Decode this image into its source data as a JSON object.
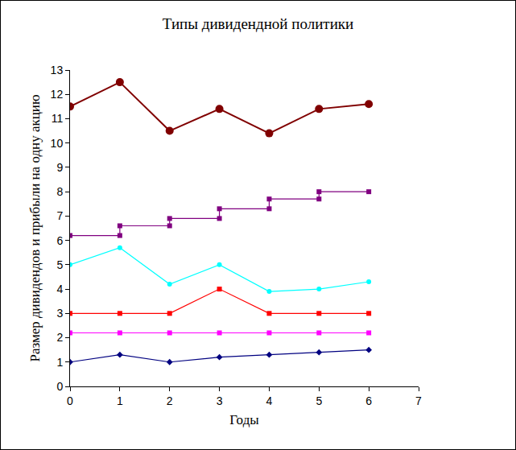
{
  "chart_data": {
    "type": "line",
    "title": "Типы дивидендной политики",
    "x_label": "Годы",
    "y_label": "Размер дивидендов и прибыли на одну акцию",
    "x": [
      0,
      1,
      2,
      3,
      4,
      5,
      6
    ],
    "series": [
      {
        "color": "#800000",
        "marker": "circle",
        "values": [
          11.5,
          12.5,
          10.5,
          11.4,
          10.4,
          11.4,
          11.6
        ]
      },
      {
        "color": "#800080",
        "marker": "square",
        "x": [
          0,
          1,
          1,
          2,
          2,
          3,
          3,
          4,
          4,
          5,
          5,
          6
        ],
        "values": [
          6.2,
          6.2,
          6.6,
          6.6,
          6.9,
          6.9,
          7.3,
          7.3,
          7.7,
          7.7,
          8.0,
          8.0
        ]
      },
      {
        "color": "#00ffff",
        "marker": "circle",
        "values": [
          5.0,
          5.7,
          4.2,
          5.0,
          3.9,
          4.0,
          4.3
        ]
      },
      {
        "color": "#ff0000",
        "marker": "square",
        "values": [
          3,
          3,
          3,
          4,
          3,
          3,
          3
        ]
      },
      {
        "color": "#ff00ff",
        "marker": "square",
        "values": [
          2.2,
          2.2,
          2.2,
          2.2,
          2.2,
          2.2,
          2.2
        ]
      },
      {
        "color": "#000080",
        "marker": "diamond",
        "values": [
          1.0,
          1.3,
          1.0,
          1.2,
          1.3,
          1.4,
          1.5
        ]
      }
    ],
    "xlim": [
      0,
      7
    ],
    "xticks": [
      0,
      1,
      2,
      3,
      4,
      5,
      6,
      7
    ],
    "ylim": [
      0,
      13
    ],
    "yticks": [
      0,
      1,
      2,
      3,
      4,
      5,
      6,
      7,
      8,
      9,
      10,
      11,
      12,
      13
    ],
    "grid": false
  }
}
